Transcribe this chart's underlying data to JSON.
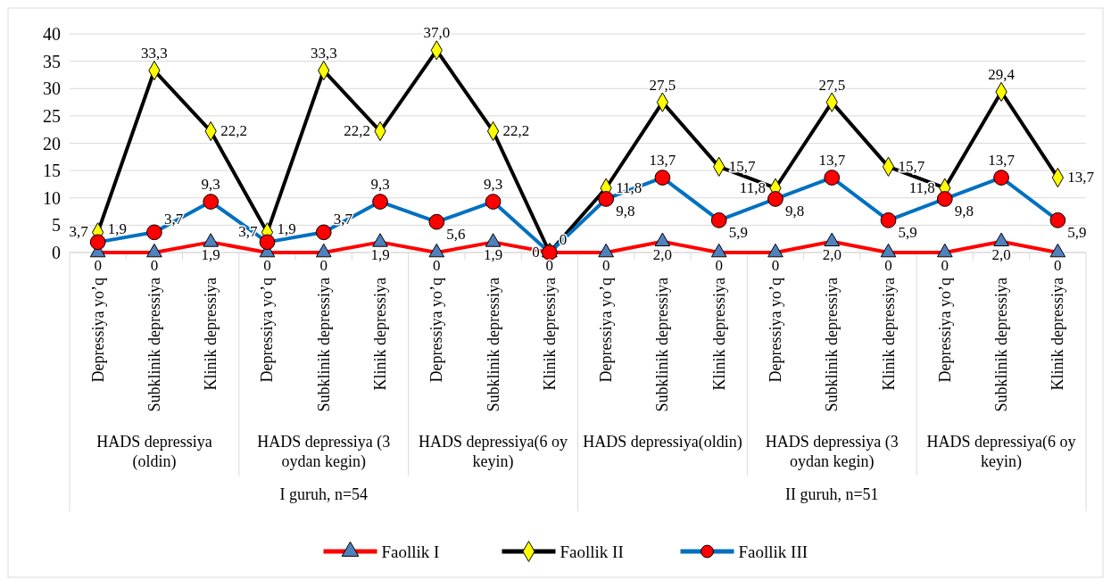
{
  "chart_data": {
    "type": "line",
    "categories": [
      "Depressiya yo’q",
      "Subklinik depressiya",
      "Klinik depressiya",
      "Depressiya yo’q",
      "Subklinik depressiya",
      "Klinik depressiya",
      "Depressiya yo’q",
      "Subklinik depressiya",
      "Klinik depressiya",
      "Depressiya yo’q",
      "Subklinik depressiya",
      "Klinik depressiya",
      "Depressiya yo’q",
      "Subklinik depressiya",
      "Klinik depressiya",
      "Depressiya yo’q",
      "Subklinik depressiya",
      "Klinik depressiya"
    ],
    "annotations": [
      "HADS depressiya (oldin)",
      "HADS depressiya (3 oydan kegin)",
      "HADS depressiya(6 oy keyin)",
      "HADS depressiya(oldin)",
      "HADS depressiya (3 oydan kegin)",
      "HADS depressiya(6 oy keyin)",
      "I guruh, n=54",
      "II guruh, n=51"
    ],
    "series": [
      {
        "name": "Faollik I",
        "color": "#ff0000",
        "marker": "triangle",
        "values": [
          0,
          0,
          1.9,
          0,
          0,
          1.9,
          0,
          1.9,
          0,
          0,
          2.0,
          0,
          0,
          2.0,
          0,
          0,
          2.0,
          0
        ],
        "value_labels": [
          "0",
          "0",
          "1,9",
          "0",
          "0",
          "1,9",
          "0",
          "1,9",
          "0",
          "0",
          "2,0",
          "0",
          "0",
          "2,0",
          "0",
          "0",
          "2,0",
          "0"
        ]
      },
      {
        "name": "Faollik II",
        "color": "#000000",
        "marker": "diamond",
        "values": [
          3.7,
          33.3,
          22.2,
          3.7,
          33.3,
          22.2,
          37.0,
          22.2,
          0,
          11.8,
          27.5,
          15.7,
          11.8,
          27.5,
          15.7,
          11.8,
          29.4,
          13.7
        ],
        "value_labels": [
          "3,7",
          "33,3",
          "22,2",
          "3,7",
          "33,3",
          "22,2",
          "37,0",
          "22,2",
          "0",
          "11,8",
          "27,5",
          "15,7",
          "11,8",
          "27,5",
          "15,7",
          "11,8",
          "29,4",
          "13,7"
        ]
      },
      {
        "name": "Faollik III",
        "color": "#0070c0",
        "marker": "circle",
        "values": [
          1.9,
          3.7,
          9.3,
          1.9,
          3.7,
          9.3,
          5.6,
          9.3,
          0,
          9.8,
          13.7,
          5.9,
          9.8,
          13.7,
          5.9,
          9.8,
          13.7,
          5.9
        ],
        "value_labels": [
          "1,9",
          "3,7",
          "9,3",
          "1,9",
          "3,7",
          "9,3",
          "5,6",
          "9,3",
          "0",
          "9,8",
          "13,7",
          "5,9",
          "9,8",
          "13,7",
          "5,9",
          "9,8",
          "13,7",
          "5,9"
        ]
      }
    ],
    "ylim": [
      0,
      40
    ],
    "yticks": [
      0,
      5,
      10,
      15,
      20,
      25,
      30,
      35,
      40
    ],
    "grid": "y",
    "legend": "bottom"
  }
}
